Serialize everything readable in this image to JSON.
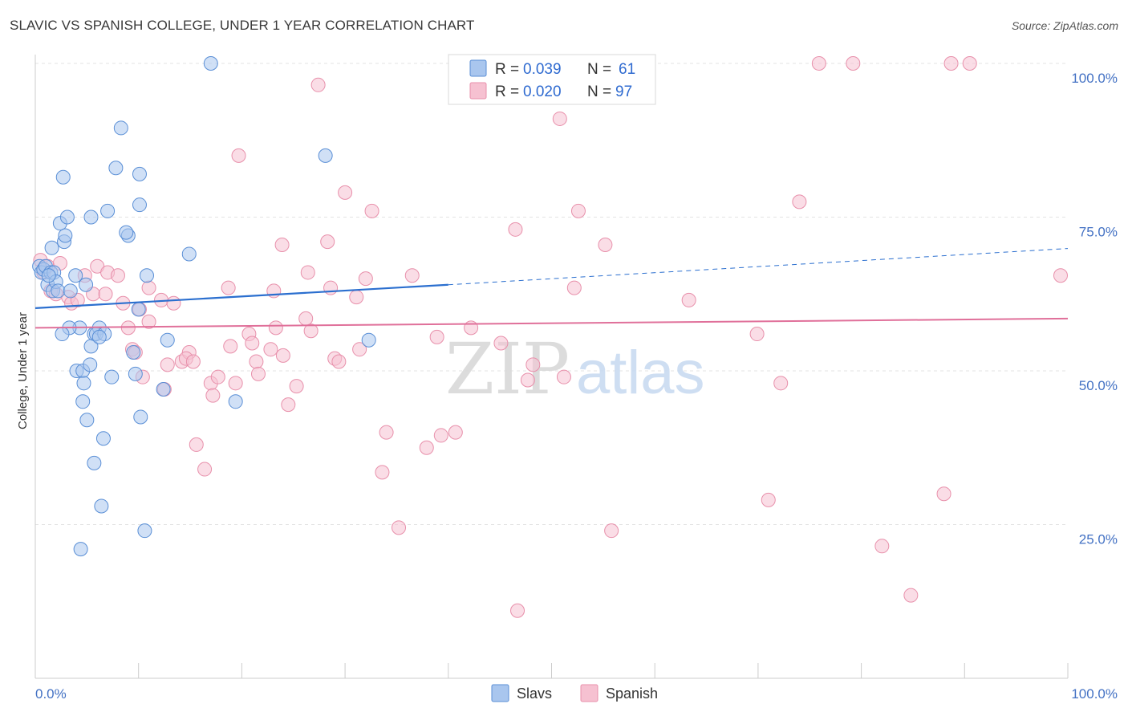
{
  "title": "SLAVIC VS SPANISH COLLEGE, UNDER 1 YEAR CORRELATION CHART",
  "source": "Source: ZipAtlas.com",
  "watermark": {
    "zip": "ZIP",
    "atlas": "atlas"
  },
  "colors": {
    "slavs_fill": "#a9c6ee",
    "slavs_stroke": "#5a8fd6",
    "slavs_line": "#2b6fcf",
    "spanish_fill": "#f6c1d1",
    "spanish_stroke": "#e890ab",
    "spanish_line": "#e0709a",
    "axis": "#cccccc",
    "grid": "#e3e3e3",
    "tick_text": "#4472c4"
  },
  "legend": {
    "r_label": "R =",
    "n_label": "N =",
    "slavs": {
      "r": "0.039",
      "n": "61"
    },
    "spanish": {
      "r": "0.020",
      "n": "97"
    }
  },
  "chart_data": {
    "type": "scatter",
    "title": "SLAVIC VS SPANISH COLLEGE, UNDER 1 YEAR CORRELATION CHART",
    "xlabel": "",
    "ylabel": "College, Under 1 year",
    "xlim": [
      0,
      100
    ],
    "ylim": [
      0,
      100
    ],
    "x_tick_labels": [
      "0.0%",
      "100.0%"
    ],
    "y_ticks": [
      25,
      50,
      75,
      100
    ],
    "y_tick_labels": [
      "25.0%",
      "50.0%",
      "75.0%",
      "100.0%"
    ],
    "series": [
      {
        "name": "Slavs",
        "r": 0.039,
        "n": 61,
        "trend": {
          "x0": 0,
          "y0": 60.2,
          "x1": 40,
          "y1": 64.0,
          "dashed_to_x": 100,
          "dashed_to_y": 69.9
        },
        "points": [
          [
            0.4,
            67
          ],
          [
            0.6,
            66
          ],
          [
            0.8,
            66.5
          ],
          [
            1.0,
            67
          ],
          [
            1.2,
            64
          ],
          [
            1.5,
            66
          ],
          [
            1.7,
            63
          ],
          [
            1.8,
            66
          ],
          [
            2.0,
            64.5
          ],
          [
            2.2,
            63
          ],
          [
            1.6,
            70
          ],
          [
            2.4,
            74
          ],
          [
            2.8,
            71
          ],
          [
            3.1,
            75
          ],
          [
            2.9,
            72
          ],
          [
            2.7,
            81.5
          ],
          [
            3.4,
            63
          ],
          [
            3.9,
            65.5
          ],
          [
            4.3,
            57
          ],
          [
            4.9,
            64
          ],
          [
            3.3,
            57
          ],
          [
            2.6,
            56
          ],
          [
            4.0,
            50
          ],
          [
            4.6,
            50
          ],
          [
            4.6,
            45
          ],
          [
            4.7,
            48
          ],
          [
            5.0,
            42
          ],
          [
            5.3,
            51
          ],
          [
            5.7,
            56
          ],
          [
            6.2,
            57
          ],
          [
            5.4,
            54
          ],
          [
            5.9,
            56
          ],
          [
            6.7,
            56
          ],
          [
            6.4,
            28
          ],
          [
            5.7,
            35
          ],
          [
            6.6,
            39
          ],
          [
            7.4,
            49
          ],
          [
            8.3,
            89.5
          ],
          [
            7.8,
            83
          ],
          [
            10.1,
            82
          ],
          [
            9.0,
            72
          ],
          [
            10.1,
            77
          ],
          [
            10.8,
            65.5
          ],
          [
            9.5,
            53
          ],
          [
            9.7,
            49.5
          ],
          [
            10.0,
            60
          ],
          [
            10.2,
            42.5
          ],
          [
            12.8,
            55
          ],
          [
            14.9,
            69
          ],
          [
            17.0,
            100
          ],
          [
            8.8,
            72.5
          ],
          [
            7.0,
            76
          ],
          [
            5.4,
            75
          ],
          [
            12.4,
            47
          ],
          [
            10.6,
            24
          ],
          [
            19.4,
            45
          ],
          [
            28.1,
            85
          ],
          [
            32.3,
            55
          ],
          [
            4.4,
            21
          ],
          [
            6.2,
            55.5
          ],
          [
            1.3,
            65.5
          ]
        ]
      },
      {
        "name": "Spanish",
        "r": 0.02,
        "n": 97,
        "trend": {
          "x0": 0,
          "y0": 57.0,
          "x1": 100,
          "y1": 58.5
        },
        "points": [
          [
            0.5,
            68
          ],
          [
            0.8,
            66
          ],
          [
            1.2,
            67
          ],
          [
            1.5,
            63
          ],
          [
            2.0,
            62.5
          ],
          [
            2.4,
            67.5
          ],
          [
            3.2,
            62
          ],
          [
            3.5,
            61
          ],
          [
            4.1,
            61.5
          ],
          [
            4.8,
            65.5
          ],
          [
            5.6,
            62.5
          ],
          [
            6.0,
            67
          ],
          [
            6.8,
            62.5
          ],
          [
            7.0,
            66
          ],
          [
            8.0,
            65.5
          ],
          [
            8.5,
            61
          ],
          [
            9.0,
            57
          ],
          [
            9.4,
            53.5
          ],
          [
            10.1,
            60
          ],
          [
            10.4,
            49
          ],
          [
            11.0,
            58
          ],
          [
            11.0,
            63.5
          ],
          [
            12.2,
            61.5
          ],
          [
            12.5,
            47
          ],
          [
            12.8,
            51
          ],
          [
            13.4,
            61
          ],
          [
            14.2,
            51.5
          ],
          [
            14.9,
            53
          ],
          [
            14.6,
            52
          ],
          [
            15.6,
            38
          ],
          [
            16.4,
            34
          ],
          [
            17.0,
            48
          ],
          [
            17.2,
            46
          ],
          [
            17.7,
            49
          ],
          [
            18.7,
            63.5
          ],
          [
            18.9,
            54
          ],
          [
            19.4,
            48
          ],
          [
            19.7,
            85
          ],
          [
            20.7,
            56
          ],
          [
            21.0,
            54.5
          ],
          [
            21.4,
            51.5
          ],
          [
            21.6,
            49.5
          ],
          [
            22.8,
            53.5
          ],
          [
            23.1,
            63
          ],
          [
            23.3,
            57
          ],
          [
            24.0,
            52.5
          ],
          [
            23.9,
            70.5
          ],
          [
            24.5,
            44.5
          ],
          [
            25.3,
            47.5
          ],
          [
            26.2,
            58.5
          ],
          [
            26.4,
            66
          ],
          [
            26.7,
            56.5
          ],
          [
            27.4,
            96.5
          ],
          [
            28.3,
            71
          ],
          [
            28.6,
            63.5
          ],
          [
            29.0,
            52
          ],
          [
            29.4,
            51.5
          ],
          [
            30.0,
            79
          ],
          [
            31.1,
            62
          ],
          [
            31.4,
            53.5
          ],
          [
            32.0,
            65
          ],
          [
            32.6,
            76
          ],
          [
            34.0,
            40
          ],
          [
            33.6,
            33.5
          ],
          [
            35.2,
            24.5
          ],
          [
            36.5,
            65.5
          ],
          [
            37.9,
            37.5
          ],
          [
            39.3,
            39.5
          ],
          [
            40.7,
            40
          ],
          [
            38.9,
            55.5
          ],
          [
            42.2,
            57
          ],
          [
            45.1,
            54.5
          ],
          [
            46.5,
            73
          ],
          [
            46.7,
            11
          ],
          [
            47.7,
            48.5
          ],
          [
            48.2,
            51
          ],
          [
            51.2,
            49
          ],
          [
            50.8,
            91
          ],
          [
            52.6,
            76
          ],
          [
            52.2,
            63.5
          ],
          [
            55.2,
            70.5
          ],
          [
            55.8,
            24
          ],
          [
            63.3,
            61.5
          ],
          [
            69.9,
            56
          ],
          [
            71.0,
            29
          ],
          [
            72.2,
            48
          ],
          [
            74.0,
            77.5
          ],
          [
            75.9,
            100
          ],
          [
            79.2,
            100
          ],
          [
            82.0,
            21.5
          ],
          [
            84.8,
            13.5
          ],
          [
            88.0,
            30
          ],
          [
            88.7,
            100
          ],
          [
            90.5,
            100
          ],
          [
            99.3,
            65.5
          ],
          [
            9.7,
            53
          ],
          [
            15.3,
            51.5
          ]
        ]
      }
    ]
  },
  "bottom_legend": {
    "slavs": "Slavs",
    "spanish": "Spanish"
  }
}
